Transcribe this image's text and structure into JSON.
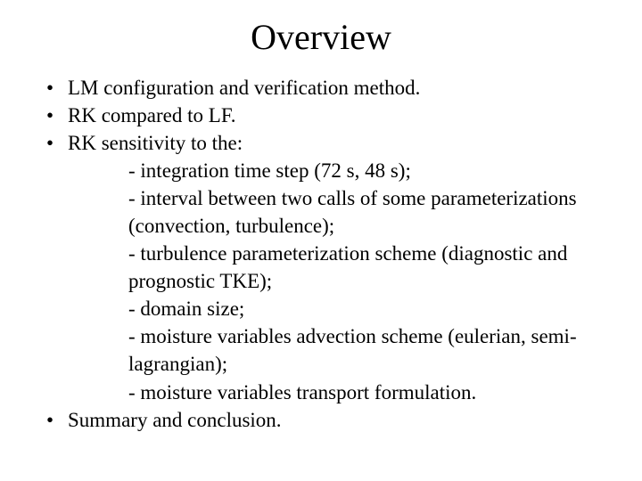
{
  "title": "Overview",
  "bullets": {
    "b1": "LM configuration and verification method.",
    "b2": "RK compared to LF.",
    "b3": "RK sensitivity to the:",
    "b4": "Summary and conclusion."
  },
  "sub": {
    "s1": "- integration time step (72 s, 48 s);",
    "s2": "- interval between two calls of some parameterizations (convection, turbulence);",
    "s3": "- turbulence parameterization scheme (diagnostic and prognostic TKE);",
    "s4": "- domain size;",
    "s5": "- moisture variables advection scheme (eulerian, semi-lagrangian);",
    "s6": "- moisture variables transport formulation."
  }
}
